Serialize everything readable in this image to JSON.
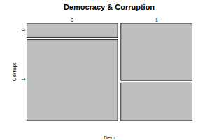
{
  "chart_data": {
    "type": "mosaic",
    "title": "Democracy & Corruption",
    "x_label": "Dem",
    "y_label": "Corrupt",
    "categories": [
      "0",
      "1"
    ],
    "widths": [
      0.56,
      0.44
    ],
    "series": [
      {
        "name": "0",
        "values": [
          0.15,
          0.6
        ]
      },
      {
        "name": "1",
        "values": [
          0.85,
          0.4
        ]
      }
    ],
    "color": "#bebebe"
  }
}
